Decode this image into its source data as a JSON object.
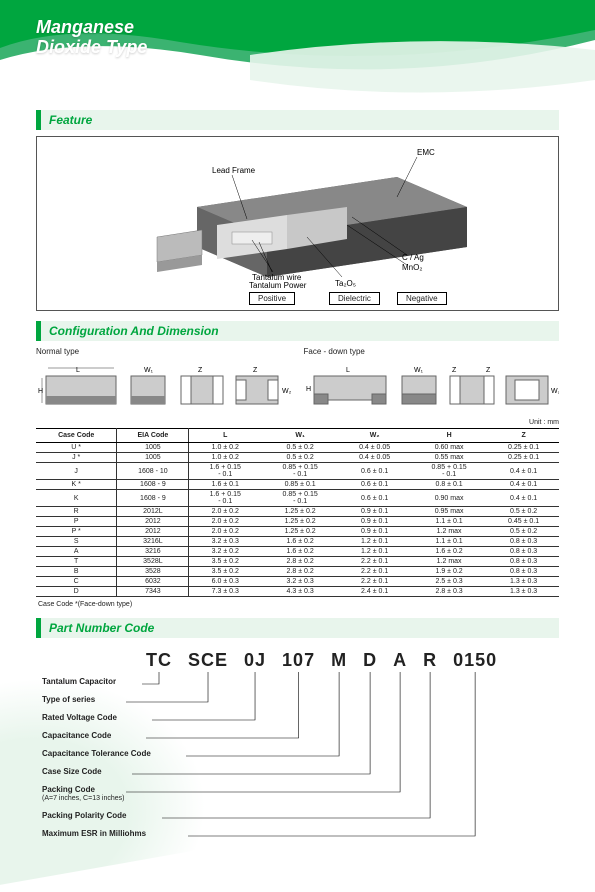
{
  "title_line1": "Manganese",
  "title_line2": "Dioxide Type",
  "sections": {
    "feature": "Feature",
    "config": "Configuration And Dimension",
    "partnum": "Part Number Code"
  },
  "feature": {
    "lead_frame": "Lead Frame",
    "emc": "EMC",
    "tant_wire": "Tantalum wire",
    "tant_powder": "Tantalum Power",
    "ta2o5": "Ta₂O₅",
    "cag": "C / Ag",
    "mno2": "MnO₂",
    "positive": "Positive",
    "dielectric": "Dielectric",
    "negative": "Negative"
  },
  "config": {
    "normal_type": "Normal type",
    "face_down": "Face - down type",
    "unit": "Unit : mm"
  },
  "dim_labels": {
    "L": "L",
    "W1": "W₁",
    "Z": "Z",
    "H": "H",
    "W2": "W₂"
  },
  "table": {
    "headers": [
      "Case Code",
      "EIA Code",
      "L",
      "W₁",
      "W₂",
      "H",
      "Z"
    ],
    "rows": [
      [
        "U *",
        "1005",
        "1.0 ± 0.2",
        "0.5 ± 0.2",
        "0.4 ± 0.05",
        "0.60 max",
        "0.25 ± 0.1"
      ],
      [
        "J *",
        "1005",
        "1.0 ± 0.2",
        "0.5 ± 0.2",
        "0.4 ± 0.05",
        "0.55 max",
        "0.25 ± 0.1"
      ],
      [
        "J",
        "1608 - 10",
        "1.6 + 0.15\n- 0.1",
        "0.85 + 0.15\n- 0.1",
        "0.6 ± 0.1",
        "0.85 + 0.15\n- 0.1",
        "0.4 ± 0.1"
      ],
      [
        "K *",
        "1608 - 9",
        "1.6 ± 0.1",
        "0.85 ± 0.1",
        "0.6 ± 0.1",
        "0.8 ± 0.1",
        "0.4 ± 0.1"
      ],
      [
        "K",
        "1608 - 9",
        "1.6 + 0.15\n- 0.1",
        "0.85 + 0.15\n- 0.1",
        "0.6 ± 0.1",
        "0.90 max",
        "0.4 ± 0.1"
      ],
      [
        "R",
        "2012L",
        "2.0 ± 0.2",
        "1.25 ± 0.2",
        "0.9 ± 0.1",
        "0.95 max",
        "0.5 ± 0.2"
      ],
      [
        "P",
        "2012",
        "2.0 ± 0.2",
        "1.25 ± 0.2",
        "0.9 ± 0.1",
        "1.1 ± 0.1",
        "0.45 ± 0.1"
      ],
      [
        "P *",
        "2012",
        "2.0 ± 0.2",
        "1.25 ± 0.2",
        "0.9 ± 0.1",
        "1.2 max",
        "0.5 ± 0.2"
      ],
      [
        "S",
        "3216L",
        "3.2 ± 0.3",
        "1.6 ± 0.2",
        "1.2 ± 0.1",
        "1.1 ± 0.1",
        "0.8 ± 0.3"
      ],
      [
        "A",
        "3216",
        "3.2 ± 0.2",
        "1.6 ± 0.2",
        "1.2 ± 0.1",
        "1.6 ± 0.2",
        "0.8 ± 0.3"
      ],
      [
        "T",
        "3528L",
        "3.5 ± 0.2",
        "2.8 ± 0.2",
        "2.2 ± 0.1",
        "1.2 max",
        "0.8 ± 0.3"
      ],
      [
        "B",
        "3528",
        "3.5 ± 0.2",
        "2.8 ± 0.2",
        "2.2 ± 0.1",
        "1.9 ± 0.2",
        "0.8 ± 0.3"
      ],
      [
        "C",
        "6032",
        "6.0 ± 0.3",
        "3.2 ± 0.3",
        "2.2 ± 0.1",
        "2.5 ± 0.3",
        "1.3 ± 0.3"
      ],
      [
        "D",
        "7343",
        "7.3 ± 0.3",
        "4.3 ± 0.3",
        "2.4 ± 0.1",
        "2.8 ± 0.3",
        "1.3 ± 0.3"
      ]
    ]
  },
  "case_note": "Case Code *(Face-down type)",
  "partnum": {
    "segments": [
      "TC",
      "SCE",
      "0J",
      "107",
      "M",
      "D",
      "A",
      "R",
      "0150"
    ],
    "labels": [
      "Tantalum Capacitor",
      "Type of series",
      "Rated Voltage Code",
      "Capacitance Code",
      "Capacitance Tolerance Code",
      "Case Size Code",
      "Packing Code",
      "Packing Polarity Code",
      "Maximum ESR in Milliohms"
    ],
    "packing_note": "(A=7 inches, C=13 inches)"
  },
  "colors": {
    "green_dark": "#00a63f",
    "green_light": "#e8f5ec",
    "green_mid": "#6bbf8f",
    "cap_body": "#555555",
    "cap_body_light": "#999999",
    "cap_inner": "#dddddd"
  }
}
